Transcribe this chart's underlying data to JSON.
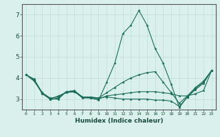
{
  "xlabel": "Humidex (Indice chaleur)",
  "ylabel": "",
  "xlim": [
    -0.5,
    23.5
  ],
  "ylim": [
    2.5,
    7.5
  ],
  "yticks": [
    3,
    4,
    5,
    6,
    7
  ],
  "xticks": [
    0,
    1,
    2,
    3,
    4,
    5,
    6,
    7,
    8,
    9,
    10,
    11,
    12,
    13,
    14,
    15,
    16,
    17,
    18,
    19,
    20,
    21,
    22,
    23
  ],
  "background_color": "#daf0ec",
  "grid_color": "#c0dbd7",
  "line_color": "#1a6b5a",
  "lines": [
    [
      4.15,
      3.95,
      3.3,
      3.0,
      3.0,
      3.35,
      3.4,
      3.1,
      3.05,
      2.95,
      3.8,
      4.7,
      6.1,
      6.5,
      7.2,
      6.5,
      5.4,
      4.7,
      3.7,
      2.6,
      3.1,
      3.5,
      3.8,
      4.35
    ],
    [
      4.15,
      3.9,
      3.3,
      2.98,
      3.05,
      3.35,
      3.35,
      3.05,
      3.05,
      3.05,
      3.3,
      3.55,
      3.8,
      4.0,
      4.15,
      4.25,
      4.3,
      3.8,
      3.3,
      2.8,
      3.15,
      3.55,
      3.85,
      4.35
    ],
    [
      4.15,
      3.85,
      3.3,
      3.05,
      3.1,
      3.35,
      3.38,
      3.08,
      3.1,
      3.0,
      3.15,
      3.2,
      3.25,
      3.3,
      3.35,
      3.35,
      3.35,
      3.3,
      3.25,
      3.15,
      3.15,
      3.25,
      3.4,
      4.35
    ],
    [
      4.15,
      3.9,
      3.25,
      3.0,
      3.15,
      3.3,
      3.35,
      3.1,
      3.1,
      3.05,
      3.1,
      3.05,
      3.0,
      3.0,
      3.0,
      3.0,
      2.95,
      2.95,
      2.9,
      2.65,
      3.1,
      3.45,
      3.75,
      4.35
    ]
  ]
}
